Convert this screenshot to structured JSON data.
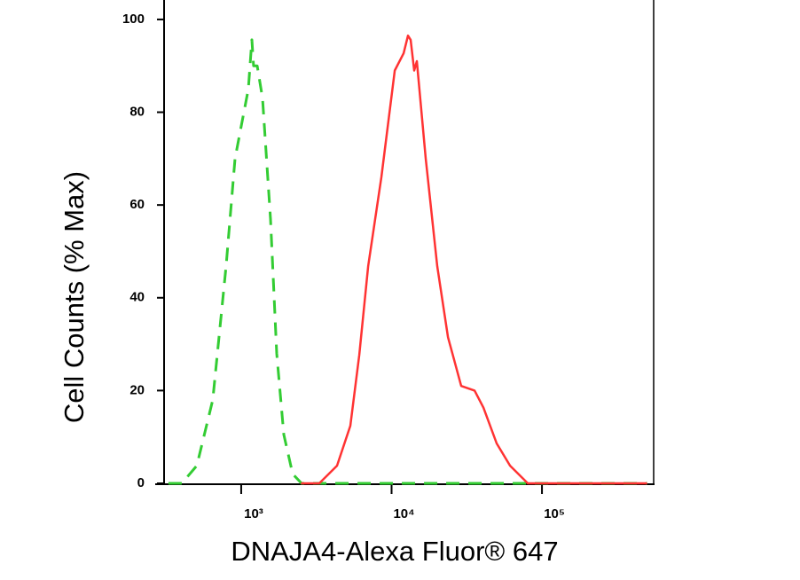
{
  "chart_data": {
    "type": "line",
    "x_label": "DNAJA4-Alexa Fluor® 647",
    "y_label": "Cell Counts (% Max)",
    "x_log": true,
    "xlim": [
      307,
      553000
    ],
    "ylim": [
      0,
      104
    ],
    "xticks": [
      {
        "value": 1000,
        "label": "10³"
      },
      {
        "value": 10000,
        "label": "10⁴"
      },
      {
        "value": 100000,
        "label": "10⁵"
      }
    ],
    "yticks": [
      0,
      20,
      40,
      60,
      80,
      100
    ],
    "series": [
      {
        "color": "#33cc33",
        "dash": true,
        "x": [
          328,
          403,
          507,
          647,
          794,
          910,
          1000,
          1115,
          1177,
          1209,
          1277,
          1386,
          1566,
          1722,
          1919,
          2198,
          2518,
          500000
        ],
        "values": [
          0,
          0,
          3.8,
          18,
          47,
          70,
          77,
          85,
          95.6,
          90,
          90,
          83,
          57,
          28,
          10.5,
          2,
          0,
          0
        ]
      },
      {
        "color": "#ff3333",
        "dash": false,
        "x": [
          2500,
          3304,
          4335,
          5318,
          6100,
          6987,
          8557,
          10500,
          12030,
          12850,
          13380,
          14130,
          14720,
          16870,
          20120,
          23700,
          29040,
          35640,
          40830,
          50000,
          61380,
          80540,
          500000
        ],
        "values": [
          0,
          0,
          3.8,
          12.4,
          27.7,
          46.8,
          66,
          89,
          92.7,
          96.5,
          95.6,
          89,
          91,
          70,
          46.8,
          31.5,
          21,
          20,
          16.3,
          8.6,
          3.8,
          0,
          0
        ]
      }
    ]
  }
}
